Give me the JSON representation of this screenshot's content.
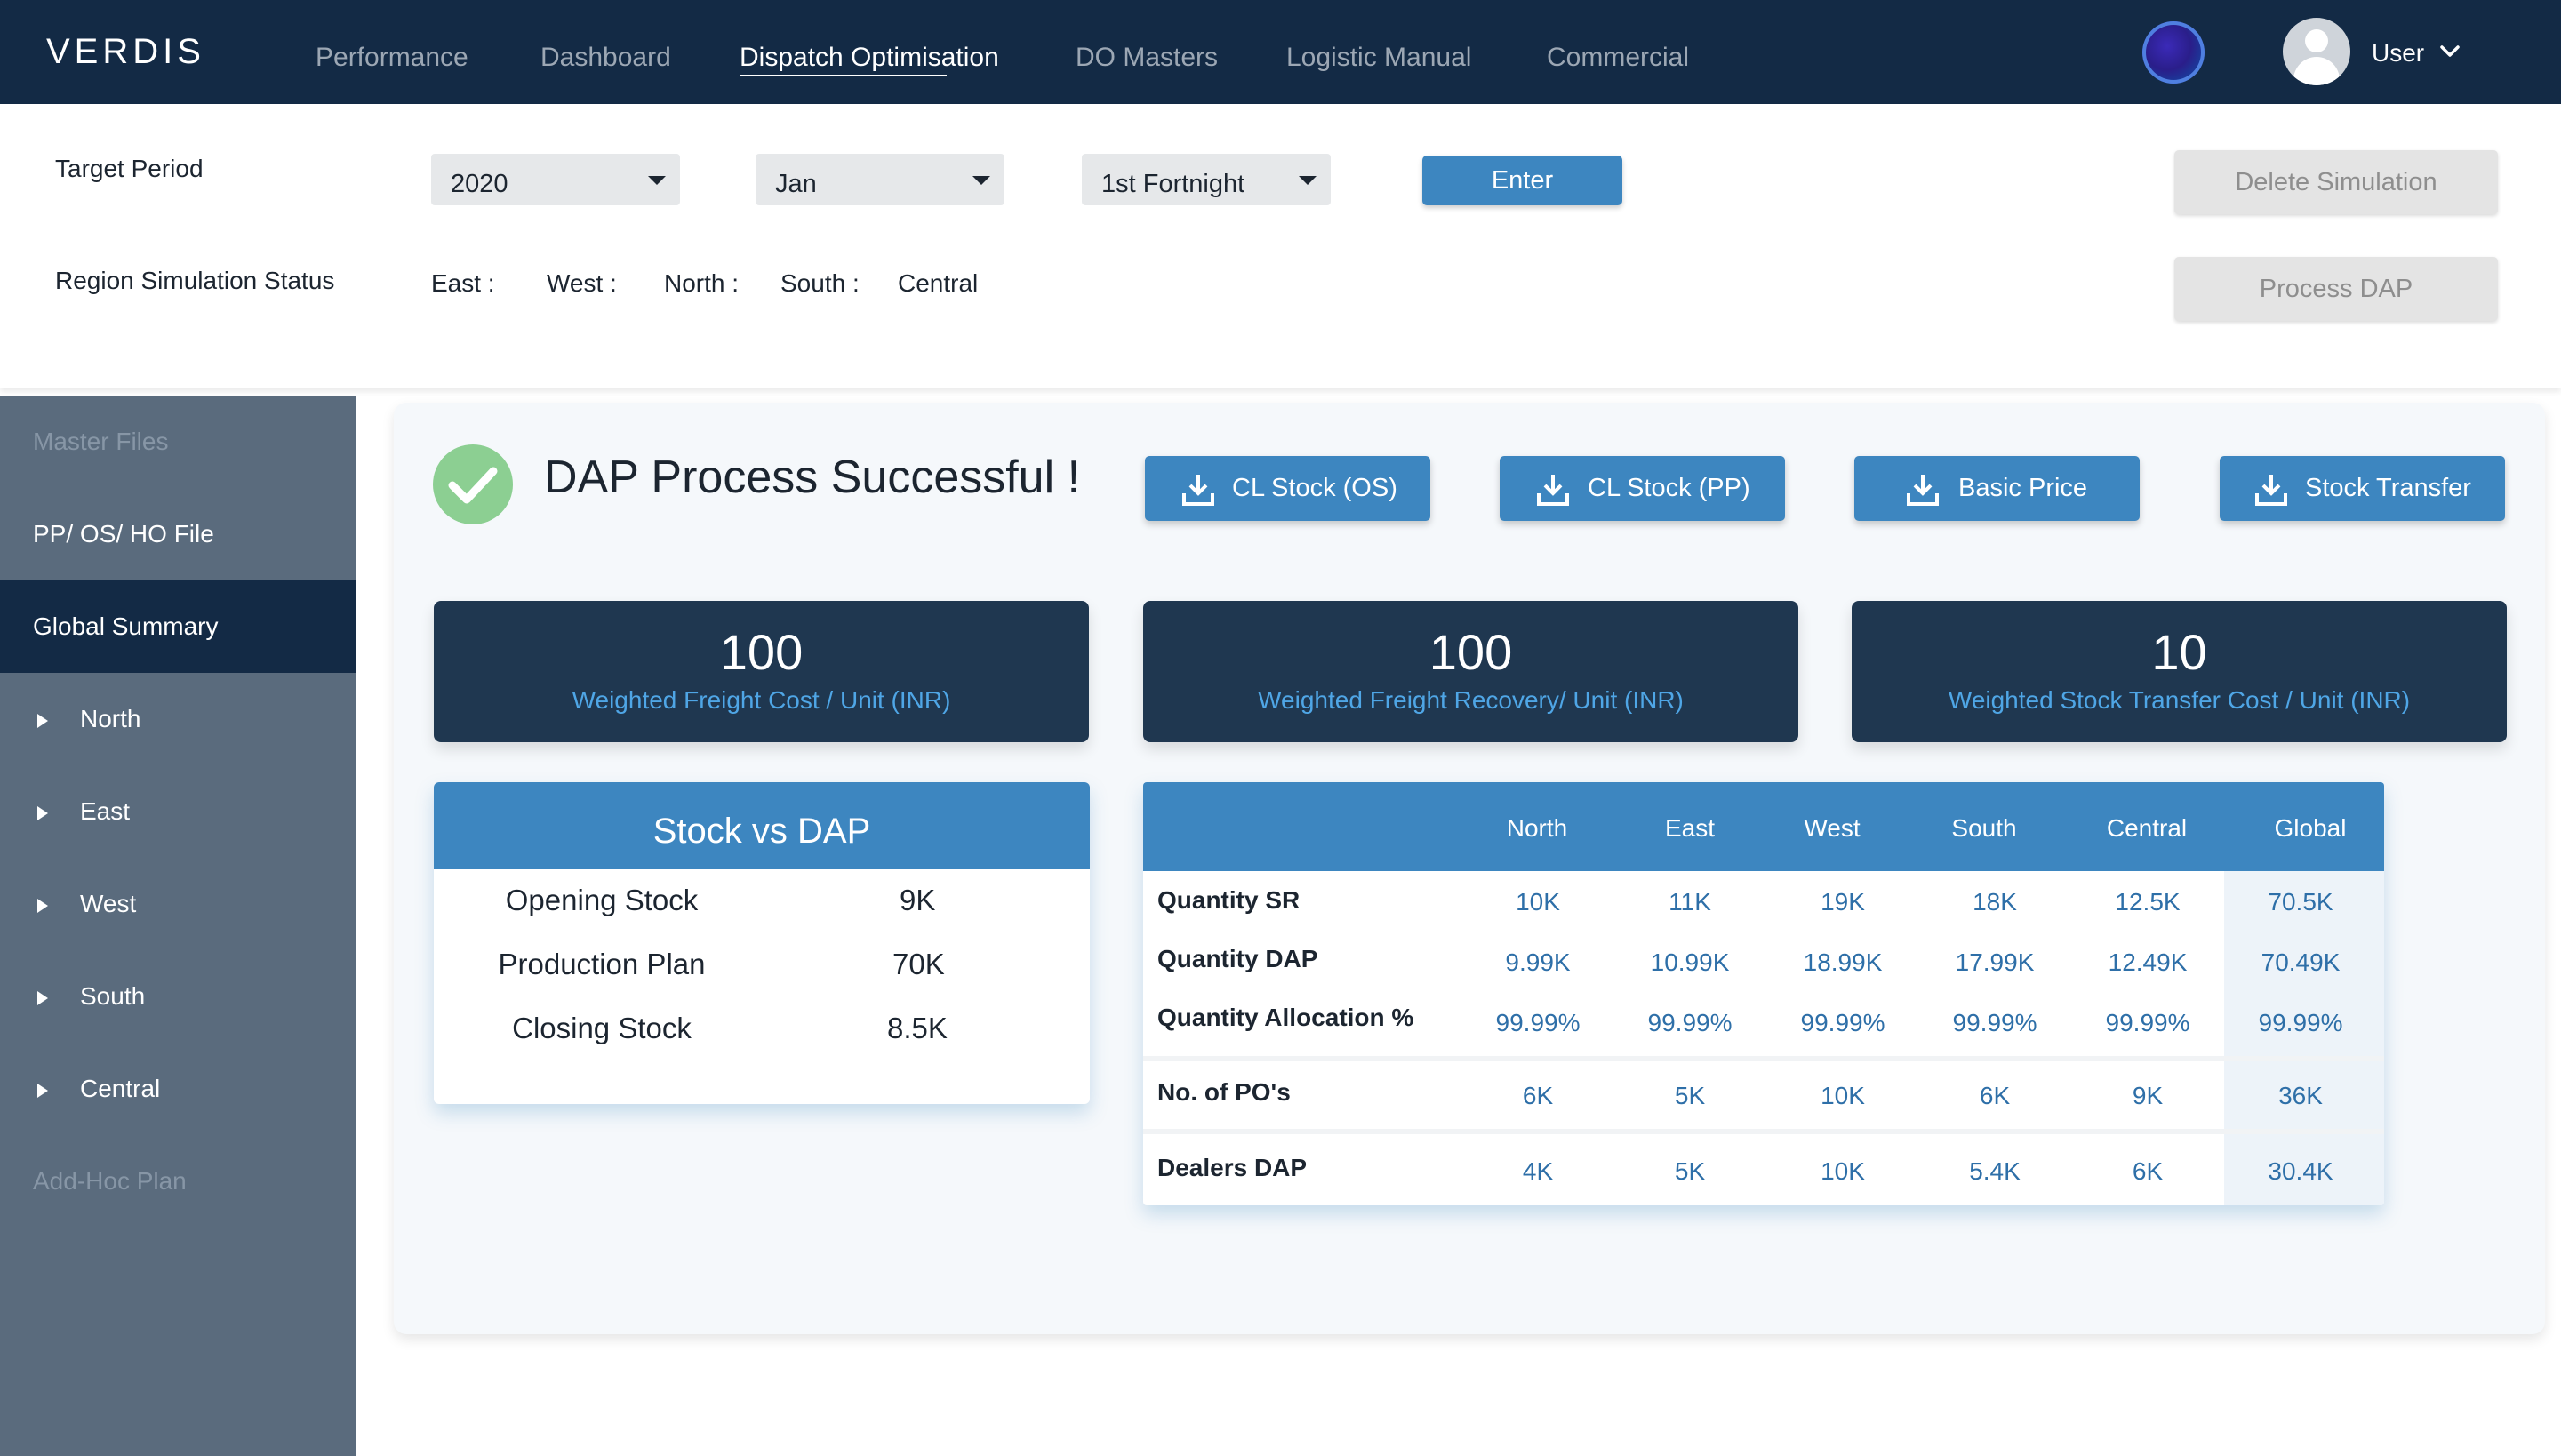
{
  "app": {
    "logo": "VERDIS"
  },
  "nav": {
    "items": [
      {
        "label": "Performance"
      },
      {
        "label": "Dashboard"
      },
      {
        "label": "Dispatch Optimisation"
      },
      {
        "label": "DO Masters"
      },
      {
        "label": "Logistic Manual"
      },
      {
        "label": "Commercial"
      }
    ],
    "active": "Dispatch Optimisation",
    "user_label": "User"
  },
  "filters": {
    "target_period_label": "Target Period",
    "year": "2020",
    "month": "Jan",
    "fortnight": "1st Fortnight",
    "enter_label": "Enter",
    "region_status_label": "Region Simulation Status",
    "regions": [
      "East :",
      "West :",
      "North :",
      "South :",
      "Central"
    ],
    "delete_label": "Delete Simulation",
    "process_label": "Process DAP"
  },
  "sidebar": {
    "items": [
      {
        "label": "Master Files"
      },
      {
        "label": "PP/ OS/ HO File"
      },
      {
        "label": "Global Summary"
      },
      {
        "label": "North"
      },
      {
        "label": "East"
      },
      {
        "label": "West"
      },
      {
        "label": "South"
      },
      {
        "label": "Central"
      },
      {
        "label": "Add-Hoc Plan"
      }
    ]
  },
  "main": {
    "success_title": "DAP Process Successful !",
    "downloads": [
      {
        "label": "CL Stock (OS)"
      },
      {
        "label": "CL Stock (PP)"
      },
      {
        "label": "Basic Price"
      },
      {
        "label": "Stock Transfer"
      }
    ],
    "kpis": [
      {
        "value": "100",
        "label": "Weighted Freight Cost / Unit (INR)"
      },
      {
        "value": "100",
        "label": "Weighted Freight Recovery/ Unit (INR)"
      },
      {
        "value": "10",
        "label": "Weighted Stock Transfer Cost / Unit (INR)"
      }
    ],
    "stock_vs_dap": {
      "title": "Stock vs DAP",
      "rows": [
        {
          "label": "Opening Stock",
          "value": "9K"
        },
        {
          "label": "Production Plan",
          "value": "70K"
        },
        {
          "label": "Closing Stock",
          "value": "8.5K"
        }
      ]
    },
    "table": {
      "columns": [
        "North",
        "East",
        "West",
        "South",
        "Central",
        "Global"
      ],
      "rows": [
        {
          "label": "Quantity SR",
          "values": [
            "10K",
            "11K",
            "19K",
            "18K",
            "12.5K",
            "70.5K"
          ]
        },
        {
          "label": "Quantity DAP",
          "values": [
            "9.99K",
            "10.99K",
            "18.99K",
            "17.99K",
            "12.49K",
            "70.49K"
          ]
        },
        {
          "label": "Quantity Allocation %",
          "values": [
            "99.99%",
            "99.99%",
            "99.99%",
            "99.99%",
            "99.99%",
            "99.99%"
          ]
        },
        {
          "label": "No. of PO's",
          "values": [
            "6K",
            "5K",
            "10K",
            "6K",
            "9K",
            "36K"
          ]
        },
        {
          "label": "Dealers DAP",
          "values": [
            "4K",
            "5K",
            "10K",
            "5.4K",
            "6K",
            "30.4K"
          ]
        }
      ]
    }
  }
}
